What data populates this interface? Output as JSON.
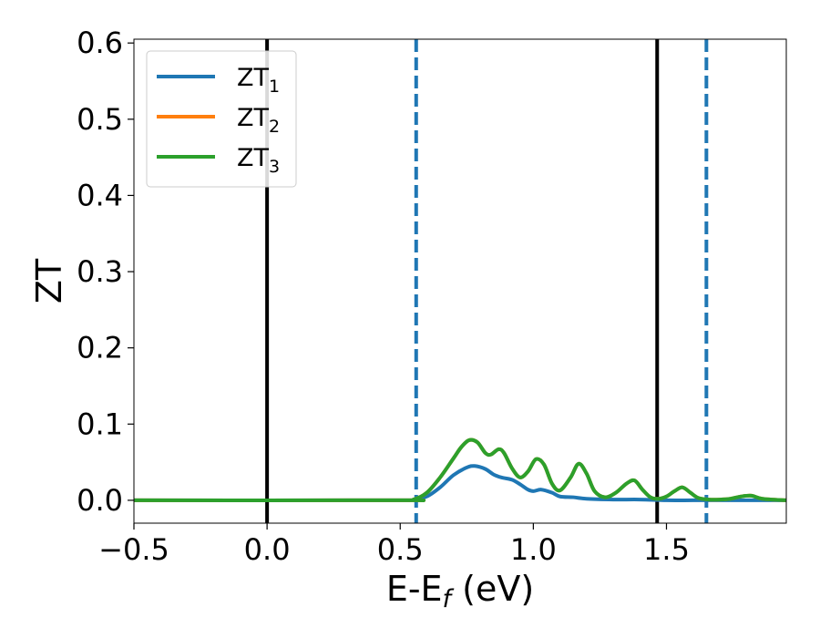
{
  "chart_data": {
    "type": "line",
    "xlabel": "E-E",
    "xlabel_sub": "f",
    "xlabel_unit": " (eV)",
    "ylabel": "ZT",
    "xlim": [
      -0.5,
      1.95
    ],
    "ylim": [
      -0.03,
      0.605
    ],
    "xticks": [
      -0.5,
      0.0,
      0.5,
      1.0,
      1.5
    ],
    "xtick_labels": [
      "−0.5",
      "0.0",
      "0.5",
      "1.0",
      "1.5"
    ],
    "yticks": [
      0.0,
      0.1,
      0.2,
      0.3,
      0.4,
      0.5,
      0.6
    ],
    "ytick_labels": [
      "0.0",
      "0.1",
      "0.2",
      "0.3",
      "0.4",
      "0.5",
      "0.6"
    ],
    "grid": false,
    "legend_position": "top-left",
    "vlines": [
      {
        "x": 0.0,
        "style": "solid",
        "color": "#000000"
      },
      {
        "x": 1.465,
        "style": "solid",
        "color": "#000000"
      },
      {
        "x": 0.56,
        "style": "dashed",
        "color": "#1f77b4"
      },
      {
        "x": 1.65,
        "style": "dashed",
        "color": "#1f77b4"
      }
    ],
    "series": [
      {
        "name": "ZT",
        "sub": "1",
        "color": "#1f77b4",
        "x": [
          -0.5,
          0.5,
          0.55,
          0.6,
          0.65,
          0.7,
          0.75,
          0.78,
          0.82,
          0.85,
          0.88,
          0.92,
          0.95,
          0.98,
          1.0,
          1.03,
          1.07,
          1.1,
          1.15,
          1.2,
          1.3,
          1.4,
          1.5,
          1.6,
          1.7,
          1.95
        ],
        "y": [
          0.0,
          0.0,
          0.001,
          0.005,
          0.017,
          0.033,
          0.043,
          0.045,
          0.041,
          0.034,
          0.03,
          0.027,
          0.021,
          0.014,
          0.012,
          0.014,
          0.01,
          0.005,
          0.004,
          0.002,
          0.001,
          0.001,
          0.0,
          0.0,
          0.0,
          0.0
        ]
      },
      {
        "name": "ZT",
        "sub": "2",
        "color": "#ff7f0e",
        "x": [
          -0.5,
          0.5,
          0.55,
          0.6,
          0.65,
          0.7,
          0.73,
          0.76,
          0.79,
          0.82,
          0.84,
          0.87,
          0.89,
          0.92,
          0.95,
          0.98,
          1.01,
          1.04,
          1.07,
          1.1,
          1.14,
          1.17,
          1.2,
          1.23,
          1.27,
          1.31,
          1.35,
          1.38,
          1.41,
          1.44,
          1.47,
          1.5,
          1.53,
          1.56,
          1.59,
          1.62,
          1.66,
          1.7,
          1.74,
          1.78,
          1.82,
          1.86,
          1.95
        ],
        "y": [
          0.0,
          0.0,
          0.001,
          0.01,
          0.03,
          0.055,
          0.07,
          0.079,
          0.076,
          0.062,
          0.06,
          0.067,
          0.062,
          0.042,
          0.03,
          0.038,
          0.054,
          0.047,
          0.022,
          0.013,
          0.03,
          0.048,
          0.035,
          0.012,
          0.004,
          0.01,
          0.022,
          0.026,
          0.014,
          0.004,
          0.002,
          0.005,
          0.012,
          0.017,
          0.01,
          0.003,
          0.001,
          0.001,
          0.002,
          0.005,
          0.006,
          0.002,
          0.0
        ]
      },
      {
        "name": "ZT",
        "sub": "3",
        "color": "#2ca02c",
        "x": [
          -0.5,
          0.5,
          0.55,
          0.6,
          0.65,
          0.7,
          0.73,
          0.76,
          0.79,
          0.82,
          0.84,
          0.87,
          0.89,
          0.92,
          0.95,
          0.98,
          1.01,
          1.04,
          1.07,
          1.1,
          1.14,
          1.17,
          1.2,
          1.23,
          1.27,
          1.31,
          1.35,
          1.38,
          1.41,
          1.44,
          1.47,
          1.5,
          1.53,
          1.56,
          1.59,
          1.62,
          1.66,
          1.7,
          1.74,
          1.78,
          1.82,
          1.86,
          1.95
        ],
        "y": [
          0.0,
          0.0,
          0.001,
          0.01,
          0.03,
          0.055,
          0.07,
          0.079,
          0.076,
          0.062,
          0.06,
          0.067,
          0.062,
          0.042,
          0.03,
          0.038,
          0.054,
          0.047,
          0.022,
          0.013,
          0.03,
          0.048,
          0.035,
          0.012,
          0.004,
          0.01,
          0.022,
          0.026,
          0.014,
          0.004,
          0.002,
          0.005,
          0.012,
          0.017,
          0.01,
          0.003,
          0.001,
          0.001,
          0.002,
          0.005,
          0.006,
          0.002,
          0.0
        ]
      }
    ]
  }
}
